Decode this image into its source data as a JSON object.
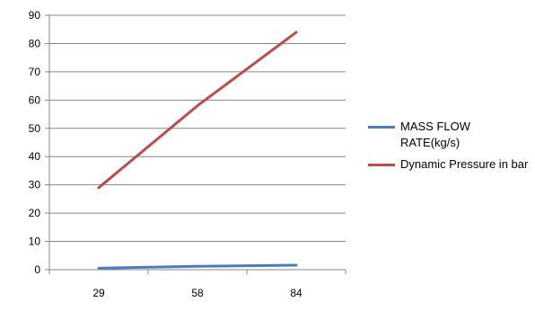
{
  "chart_data": {
    "type": "line",
    "categories": [
      "29",
      "58",
      "84"
    ],
    "ylim": [
      0,
      90
    ],
    "ytick_step": 10,
    "grid": true,
    "legend_position": "right",
    "series": [
      {
        "name": "MASS FLOW RATE(kg/s)",
        "color": "#4a7ebb",
        "values": [
          0.5,
          1.2,
          1.6
        ]
      },
      {
        "name": "Dynamic Pressure in bar",
        "color": "#be4b48",
        "values": [
          29,
          58,
          84
        ]
      }
    ]
  }
}
